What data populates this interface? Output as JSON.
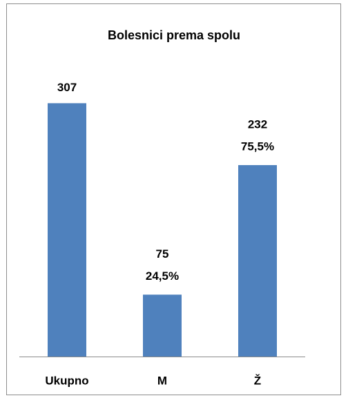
{
  "chart_data": {
    "type": "bar",
    "title": "Bolesnici prema spolu",
    "categories": [
      "Ukupno",
      "M",
      "Ž"
    ],
    "values": [
      307,
      75,
      232
    ],
    "share_labels": [
      null,
      "24,5%",
      "75,5%"
    ],
    "color": "#4f81bd",
    "ylim": [
      0,
      350
    ],
    "grid": false
  }
}
